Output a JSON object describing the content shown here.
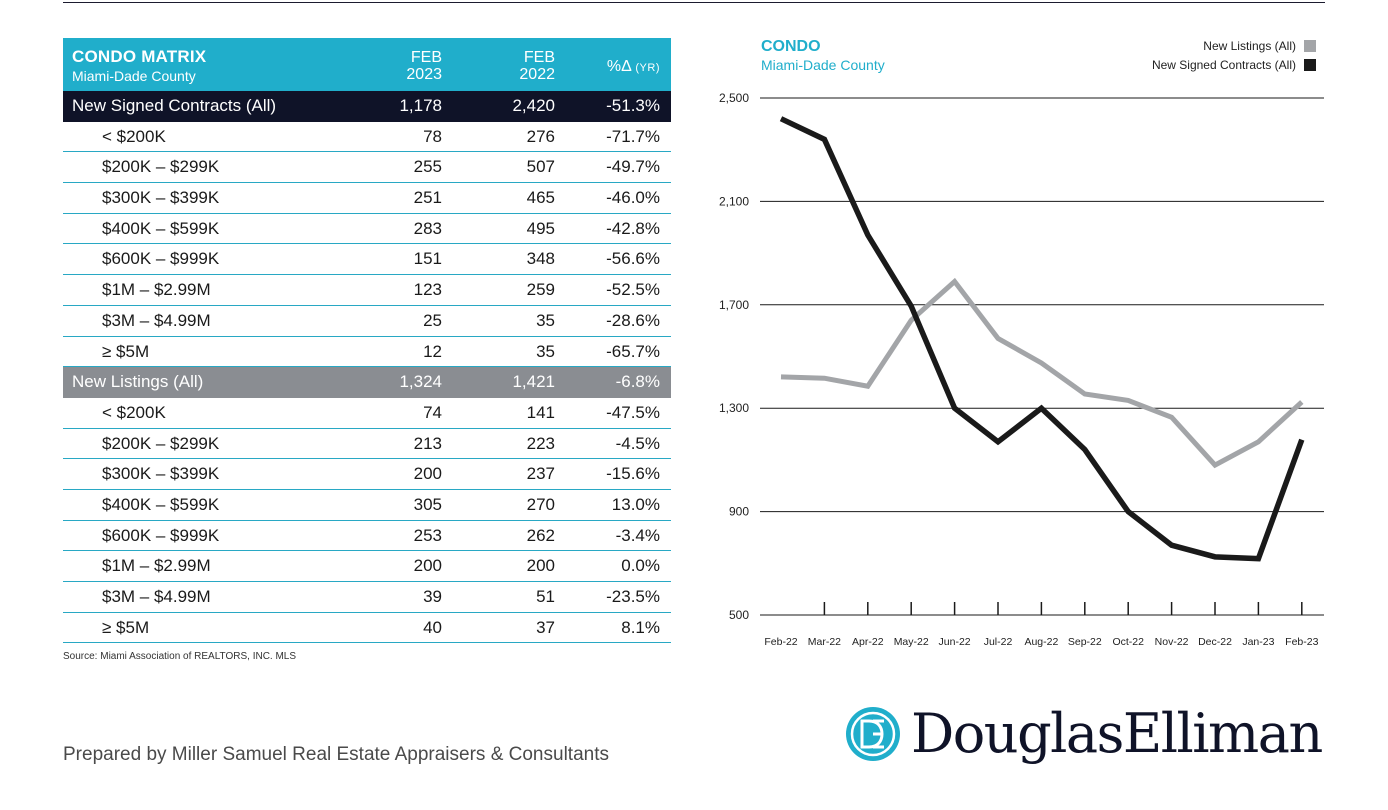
{
  "table": {
    "title": "CONDO MATRIX",
    "subtitle": "Miami-Dade County",
    "col1": [
      "FEB",
      "2023"
    ],
    "col2": [
      "FEB",
      "2022"
    ],
    "col3_main": "%Δ",
    "col3_small": "(YR)",
    "sections": [
      {
        "label": "New Signed Contracts (All)",
        "v1": "1,178",
        "v2": "2,420",
        "v3": "-51.3%",
        "rows": [
          {
            "label": "< $200K",
            "v1": "78",
            "v2": "276",
            "v3": "-71.7%"
          },
          {
            "label": "$200K – $299K",
            "v1": "255",
            "v2": "507",
            "v3": "-49.7%"
          },
          {
            "label": "$300K – $399K",
            "v1": "251",
            "v2": "465",
            "v3": "-46.0%"
          },
          {
            "label": "$400K – $599K",
            "v1": "283",
            "v2": "495",
            "v3": "-42.8%"
          },
          {
            "label": "$600K – $999K",
            "v1": "151",
            "v2": "348",
            "v3": "-56.6%"
          },
          {
            "label": "$1M – $2.99M",
            "v1": "123",
            "v2": "259",
            "v3": "-52.5%"
          },
          {
            "label": "$3M – $4.99M",
            "v1": "25",
            "v2": "35",
            "v3": "-28.6%"
          },
          {
            "label": "≥ $5M",
            "v1": "12",
            "v2": "35",
            "v3": "-65.7%"
          }
        ]
      },
      {
        "label": "New Listings (All)",
        "v1": "1,324",
        "v2": "1,421",
        "v3": "-6.8%",
        "rows": [
          {
            "label": "< $200K",
            "v1": "74",
            "v2": "141",
            "v3": "-47.5%"
          },
          {
            "label": "$200K – $299K",
            "v1": "213",
            "v2": "223",
            "v3": "-4.5%"
          },
          {
            "label": "$300K – $399K",
            "v1": "200",
            "v2": "237",
            "v3": "-15.6%"
          },
          {
            "label": "$400K – $599K",
            "v1": "305",
            "v2": "270",
            "v3": "13.0%"
          },
          {
            "label": "$600K – $999K",
            "v1": "253",
            "v2": "262",
            "v3": "-3.4%"
          },
          {
            "label": "$1M – $2.99M",
            "v1": "200",
            "v2": "200",
            "v3": "0.0%"
          },
          {
            "label": "$3M – $4.99M",
            "v1": "39",
            "v2": "51",
            "v3": "-23.5%"
          },
          {
            "label": "≥ $5M",
            "v1": "40",
            "v2": "37",
            "v3": "8.1%"
          }
        ]
      }
    ],
    "source": "Source: Miami Association of REALTORS, INC. MLS"
  },
  "chart_data": {
    "type": "line",
    "title": "CONDO",
    "subtitle": "Miami-Dade County",
    "categories": [
      "Feb-22",
      "Mar-22",
      "Apr-22",
      "May-22",
      "Jun-22",
      "Jul-22",
      "Aug-22",
      "Sep-22",
      "Oct-22",
      "Nov-22",
      "Dec-22",
      "Jan-23",
      "Feb-23"
    ],
    "yticks": [
      "2,500",
      "2,100",
      "1,700",
      "1,300",
      "900",
      "500"
    ],
    "ylim": [
      500,
      2500
    ],
    "series": [
      {
        "name": "New Listings (All)",
        "color": "#a3a5a8",
        "values": [
          1421,
          1416,
          1385,
          1640,
          1790,
          1570,
          1475,
          1355,
          1330,
          1265,
          1080,
          1170,
          1324
        ]
      },
      {
        "name": "New Signed Contracts (All)",
        "color": "#1a1a1a",
        "values": [
          2420,
          2340,
          1970,
          1695,
          1300,
          1170,
          1300,
          1140,
          900,
          770,
          725,
          718,
          1178
        ]
      }
    ],
    "legend_position": "top-right"
  },
  "colors": {
    "teal": "#20aecb",
    "navy": "#0f1328",
    "gray": "#8a8d92"
  },
  "footer": {
    "prepared_by": "Prepared by Miller Samuel Real Estate Appraisers & Consultants",
    "logo_text": "DouglasElliman"
  }
}
